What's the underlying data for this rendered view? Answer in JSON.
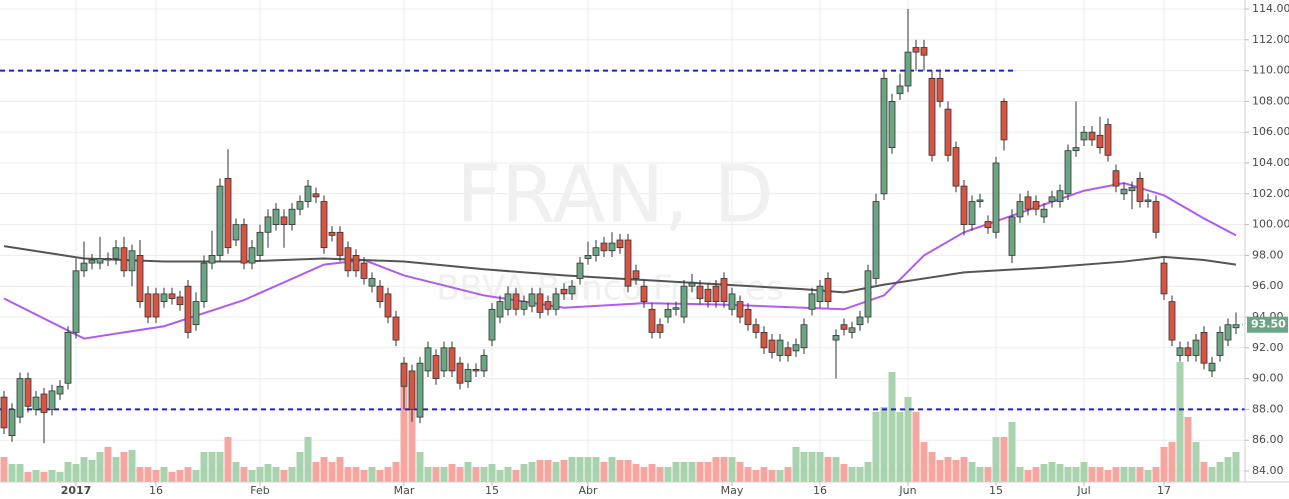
{
  "chart_data": {
    "type": "candlestick",
    "watermark": "FRAN, D",
    "watermark_subtitle": "BBVA Banco Frances",
    "categories": [
      null,
      null,
      null,
      null,
      null,
      null,
      null,
      null,
      null,
      "2017",
      null,
      null,
      null,
      null,
      null,
      null,
      null,
      null,
      null,
      "16",
      null,
      null,
      null,
      null,
      null,
      null,
      null,
      null,
      null,
      null,
      null,
      null,
      "Feb",
      null,
      null,
      null,
      null,
      null,
      null,
      null,
      null,
      null,
      null,
      null,
      null,
      null,
      null,
      null,
      null,
      null,
      "Mar",
      null,
      null,
      null,
      null,
      null,
      null,
      null,
      null,
      null,
      null,
      "15",
      null,
      null,
      null,
      null,
      null,
      null,
      null,
      null,
      null,
      null,
      null,
      "Abr",
      null,
      null,
      null,
      null,
      null,
      null,
      null,
      null,
      null,
      null,
      null,
      null,
      null,
      null,
      null,
      null,
      null,
      "May",
      null,
      null,
      null,
      null,
      null,
      null,
      null,
      null,
      null,
      null,
      "16",
      null,
      null,
      null,
      null,
      null,
      null,
      null,
      null,
      null,
      null,
      "Jun",
      null,
      null,
      null,
      null,
      null,
      null,
      null,
      null,
      null,
      null,
      "15",
      null,
      null,
      null,
      null,
      null,
      null,
      null,
      null,
      null,
      null,
      "Jul",
      null,
      null,
      null,
      null,
      null,
      null,
      null,
      null,
      null,
      "17",
      null,
      null,
      null,
      null,
      null,
      null,
      null,
      null,
      null
    ],
    "open": [
      88.8,
      86.3,
      87.5,
      90.0,
      88.0,
      89.0,
      88.0,
      89.0,
      89.7,
      93.0,
      97.0,
      97.5,
      97.5,
      97.8,
      97.8,
      98.5,
      97.0,
      98.0,
      95.5,
      95.5,
      95.0,
      95.5,
      95.3,
      96.0,
      93.5,
      95.0,
      97.5,
      98.0,
      103.0,
      99.0,
      100.0,
      97.5,
      98.0,
      99.5,
      100.0,
      100.5,
      100.0,
      101.0,
      101.5,
      102.0,
      101.5,
      99.5,
      99.5,
      98.5,
      98.0,
      97.5,
      96.0,
      96.0,
      95.5,
      94.0,
      91.0,
      90.5,
      87.5,
      90.5,
      91.5,
      90.5,
      92.0,
      91.0,
      89.8,
      90.6,
      90.5,
      92.5,
      94.0,
      94.5,
      95.5,
      94.5,
      94.7,
      95.5,
      95.0,
      94.5,
      95.8,
      95.5,
      96.5,
      97.8,
      98.0,
      98.8,
      98.3,
      99.0,
      99.0,
      97.0,
      96.0,
      94.5,
      93.5,
      94.0,
      94.5,
      94.0,
      96.0,
      96.0,
      95.8,
      96.0,
      96.5,
      94.5,
      95.0,
      94.5,
      93.5,
      93.0,
      92.5,
      91.5,
      92.0,
      91.8,
      92.0,
      94.5,
      95.0,
      96.5,
      92.5,
      93.5,
      93.0,
      93.5,
      94.0,
      96.5,
      102.0,
      105.0,
      108.5,
      109.0,
      111.5,
      111.5,
      109.5,
      109.5,
      107.5,
      105.0,
      102.5,
      100.0,
      101.5,
      100.2,
      99.5,
      108.0,
      98.0,
      100.5,
      101.8,
      101.5,
      100.5,
      101.5,
      101.5,
      102.0,
      104.8,
      105.5,
      106.0,
      105.8,
      106.5,
      103.5,
      102.0,
      102.2,
      103.0,
      101.5,
      101.5,
      97.5,
      95.0,
      91.5,
      92.0,
      91.5,
      93.0,
      90.5,
      91.5,
      92.5,
      93.3
    ],
    "high": [
      89.2,
      88.4,
      90.4,
      90.4,
      89.2,
      89.4,
      89.6,
      89.9,
      93.4,
      97.8,
      98.9,
      98.1,
      99.2,
      98.2,
      99.0,
      99.2,
      98.7,
      99.0,
      96.0,
      95.9,
      95.9,
      95.9,
      95.7,
      96.4,
      95.6,
      98.0,
      99.6,
      103.0,
      104.9,
      100.4,
      100.4,
      99.0,
      100.0,
      101.0,
      101.4,
      101.0,
      101.4,
      101.9,
      102.9,
      102.4,
      101.9,
      99.9,
      99.9,
      98.9,
      98.4,
      97.9,
      96.9,
      96.4,
      95.9,
      94.4,
      91.4,
      90.9,
      91.4,
      92.4,
      91.9,
      92.4,
      92.4,
      91.4,
      91.0,
      91.0,
      91.9,
      94.9,
      95.4,
      96.0,
      95.9,
      95.4,
      95.9,
      95.9,
      95.4,
      95.9,
      96.2,
      96.4,
      97.9,
      98.9,
      99.0,
      99.2,
      99.5,
      99.4,
      99.4,
      97.4,
      96.4,
      94.9,
      93.9,
      94.9,
      95.0,
      96.4,
      96.8,
      96.4,
      96.2,
      96.4,
      96.9,
      95.9,
      95.4,
      94.9,
      93.9,
      93.4,
      92.9,
      92.9,
      92.4,
      92.6,
      93.9,
      95.9,
      96.4,
      96.9,
      93.2,
      93.9,
      93.7,
      94.4,
      97.4,
      102.0,
      110.0,
      108.5,
      109.8,
      114.0,
      112.0,
      112.0,
      110.0,
      110.0,
      108.0,
      105.4,
      102.9,
      101.9,
      102.0,
      100.6,
      104.4,
      108.2,
      101.0,
      102.0,
      102.2,
      101.9,
      101.4,
      102.2,
      102.6,
      105.2,
      108.0,
      106.4,
      106.4,
      107.0,
      106.9,
      103.9,
      102.7,
      102.8,
      103.4,
      102.0,
      101.9,
      97.9,
      95.4,
      92.4,
      92.4,
      92.9,
      93.4,
      91.4,
      93.4,
      93.9,
      94.3
    ],
    "low": [
      86.4,
      85.9,
      87.1,
      87.8,
      87.6,
      85.8,
      87.6,
      88.6,
      89.3,
      92.6,
      96.6,
      97.1,
      97.1,
      97.3,
      97.4,
      96.6,
      96.0,
      94.6,
      93.6,
      93.6,
      94.6,
      94.8,
      94.4,
      92.6,
      93.1,
      94.6,
      97.1,
      97.6,
      98.1,
      98.6,
      97.1,
      97.1,
      97.6,
      98.5,
      99.6,
      98.5,
      99.6,
      100.6,
      101.1,
      101.4,
      98.1,
      98.9,
      97.6,
      96.6,
      96.6,
      96.1,
      95.6,
      94.6,
      93.6,
      92.1,
      88.0,
      87.2,
      87.1,
      90.1,
      89.6,
      90.1,
      90.1,
      89.3,
      89.4,
      90.1,
      90.1,
      92.1,
      93.6,
      94.1,
      94.1,
      94.1,
      94.3,
      93.9,
      94.1,
      94.1,
      95.1,
      95.1,
      96.1,
      97.4,
      97.6,
      97.9,
      97.9,
      98.1,
      95.6,
      96.1,
      94.6,
      92.6,
      92.6,
      93.6,
      94.1,
      93.6,
      95.6,
      94.8,
      94.6,
      94.6,
      94.6,
      94.1,
      93.6,
      93.1,
      92.6,
      91.6,
      91.3,
      91.1,
      91.1,
      91.4,
      91.6,
      94.1,
      94.6,
      94.6,
      90.0,
      92.8,
      92.6,
      93.1,
      93.6,
      96.1,
      101.6,
      104.6,
      108.1,
      108.6,
      110.0,
      110.0,
      104.1,
      107.6,
      104.1,
      102.1,
      99.3,
      99.6,
      101.1,
      99.4,
      99.1,
      104.8,
      97.5,
      100.1,
      100.6,
      100.6,
      100.1,
      101.1,
      101.1,
      101.6,
      104.4,
      105.1,
      105.1,
      104.6,
      104.1,
      102.1,
      101.6,
      101.0,
      101.1,
      101.1,
      99.1,
      95.1,
      92.1,
      91.1,
      91.1,
      91.1,
      90.6,
      90.1,
      91.1,
      92.1,
      92.9
    ],
    "close": [
      86.8,
      88.0,
      90.0,
      88.2,
      88.8,
      87.8,
      89.2,
      89.5,
      93.0,
      97.0,
      97.5,
      97.7,
      97.8,
      97.7,
      98.5,
      97.0,
      98.3,
      95.0,
      94.0,
      94.0,
      95.5,
      95.2,
      94.8,
      93.0,
      95.0,
      97.5,
      98.0,
      102.5,
      98.5,
      100.0,
      97.5,
      98.5,
      99.5,
      100.5,
      101.0,
      100.0,
      101.0,
      101.5,
      102.5,
      101.8,
      98.5,
      99.3,
      98.0,
      97.0,
      97.0,
      96.5,
      96.5,
      95.0,
      94.0,
      92.5,
      89.5,
      88.0,
      91.0,
      92.0,
      90.0,
      92.0,
      90.5,
      89.7,
      90.6,
      90.5,
      91.5,
      94.5,
      95.0,
      95.5,
      94.5,
      95.0,
      95.5,
      94.3,
      94.5,
      95.5,
      95.5,
      96.0,
      97.5,
      98.0,
      98.5,
      98.3,
      98.8,
      98.5,
      96.0,
      96.5,
      95.0,
      93.0,
      93.0,
      94.5,
      94.6,
      96.0,
      96.2,
      95.2,
      95.0,
      95.0,
      95.0,
      95.5,
      94.0,
      93.5,
      93.0,
      92.0,
      91.7,
      92.5,
      91.5,
      92.2,
      93.5,
      95.5,
      96.0,
      95.0,
      92.8,
      93.2,
      93.3,
      94.0,
      97.0,
      101.5,
      109.5,
      108.0,
      109.0,
      111.2,
      111.2,
      111.0,
      104.5,
      108.0,
      104.5,
      102.5,
      100.0,
      101.5,
      101.6,
      99.8,
      104.0,
      105.5,
      100.5,
      101.5,
      101.0,
      101.0,
      101.0,
      101.8,
      102.2,
      104.8,
      105.0,
      106.0,
      105.5,
      105.0,
      104.5,
      102.5,
      102.3,
      102.4,
      101.5,
      101.6,
      99.5,
      95.5,
      92.5,
      92.0,
      91.5,
      92.5,
      91.0,
      91.0,
      93.0,
      93.5,
      93.5
    ],
    "volume": [
      25,
      18,
      18,
      10,
      12,
      10,
      12,
      10,
      20,
      18,
      25,
      22,
      30,
      35,
      25,
      30,
      32,
      15,
      15,
      12,
      15,
      10,
      12,
      15,
      12,
      30,
      30,
      30,
      45,
      20,
      15,
      12,
      15,
      18,
      15,
      12,
      15,
      30,
      45,
      20,
      25,
      20,
      25,
      15,
      15,
      12,
      15,
      12,
      15,
      20,
      110,
      75,
      30,
      15,
      15,
      15,
      18,
      15,
      20,
      15,
      15,
      18,
      12,
      15,
      12,
      18,
      20,
      22,
      22,
      20,
      22,
      25,
      25,
      25,
      25,
      20,
      25,
      22,
      22,
      18,
      15,
      18,
      15,
      15,
      20,
      20,
      20,
      20,
      20,
      25,
      25,
      25,
      20,
      15,
      12,
      15,
      12,
      12,
      15,
      35,
      30,
      30,
      30,
      25,
      25,
      18,
      15,
      15,
      20,
      70,
      75,
      110,
      70,
      85,
      70,
      40,
      30,
      22,
      25,
      22,
      25,
      20,
      15,
      15,
      45,
      45,
      60,
      15,
      12,
      15,
      18,
      20,
      18,
      15,
      15,
      20,
      15,
      15,
      12,
      15,
      15,
      15,
      15,
      12,
      15,
      35,
      40,
      120,
      65,
      40,
      20,
      15,
      20,
      25,
      30
    ],
    "up_color": "#6ba583",
    "down_color": "#d75442",
    "volume_up_color": "#a9d3ae",
    "volume_down_color": "#f5a6a0",
    "series": [
      {
        "color": "#b05cf0",
        "x": [
          0,
          10,
          20,
          30,
          40,
          45,
          50,
          60,
          70,
          80,
          90,
          100,
          105,
          110,
          115,
          120,
          130,
          135,
          140,
          145,
          150,
          154
        ],
        "values": [
          95.2,
          92.6,
          93.4,
          95.1,
          97.4,
          97.7,
          96.7,
          95.4,
          94.6,
          94.9,
          94.8,
          94.6,
          94.5,
          95.4,
          98.0,
          99.5,
          101.3,
          102.2,
          102.7,
          101.9,
          100.4,
          99.3
        ]
      },
      {
        "color": "#555555",
        "x": [
          0,
          10,
          20,
          30,
          40,
          50,
          60,
          70,
          80,
          90,
          100,
          105,
          110,
          120,
          130,
          140,
          145,
          150,
          154
        ],
        "values": [
          98.6,
          97.8,
          97.6,
          97.6,
          97.8,
          97.6,
          97.1,
          96.7,
          96.4,
          96.1,
          95.8,
          95.6,
          96.1,
          96.9,
          97.2,
          97.6,
          97.9,
          97.7,
          97.4
        ]
      }
    ],
    "levels": [
      110,
      88
    ],
    "level_color": "#2222cc",
    "last_price": {
      "value": 93.5,
      "label": "93.50"
    },
    "ylim": [
      84,
      114
    ],
    "yticks": [
      {
        "value": 84,
        "label": "84.00"
      },
      {
        "value": 86,
        "label": "86.00"
      },
      {
        "value": 88,
        "label": "88.00"
      },
      {
        "value": 90,
        "label": "90.00"
      },
      {
        "value": 92,
        "label": "92.00"
      },
      {
        "value": 94,
        "label": "94.00"
      },
      {
        "value": 96,
        "label": "96.00"
      },
      {
        "value": 98,
        "label": "98.00"
      },
      {
        "value": 100,
        "label": "100.00"
      },
      {
        "value": 102,
        "label": "102.00"
      },
      {
        "value": 104,
        "label": "104.00"
      },
      {
        "value": 106,
        "label": "106.00"
      },
      {
        "value": 108,
        "label": "108.00"
      },
      {
        "value": 110,
        "label": "110.00"
      },
      {
        "value": 112,
        "label": "112.00"
      },
      {
        "value": 114,
        "label": "114.00"
      }
    ],
    "grid": true
  }
}
